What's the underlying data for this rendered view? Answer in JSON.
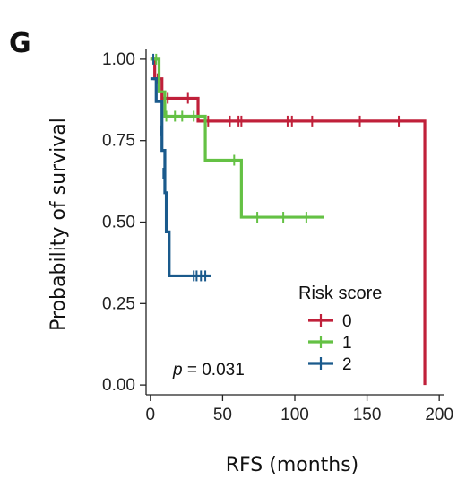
{
  "panel_label": "G",
  "chart_data": {
    "type": "line",
    "subtype": "kaplan-meier",
    "xlabel": "RFS (months)",
    "ylabel": "Probability of survival",
    "xlim": [
      -3,
      203
    ],
    "ylim": [
      -0.03,
      1.03
    ],
    "x_ticks": [
      0,
      50,
      100,
      150,
      200
    ],
    "y_ticks": [
      0.0,
      0.25,
      0.5,
      0.75,
      1.0
    ],
    "y_tick_labels": [
      "0.00",
      "0.25",
      "0.50",
      "0.75",
      "1.00"
    ],
    "grid": false,
    "legend": {
      "title": "Risk score",
      "placement": "bottom-right"
    },
    "annotation": {
      "prefix": "p",
      "text": " = 0.031"
    },
    "series": [
      {
        "name": "0",
        "color": "#c0203a",
        "steps": [
          [
            0,
            1.0
          ],
          [
            3,
            0.94
          ],
          [
            8,
            0.88
          ],
          [
            33,
            0.81
          ],
          [
            190,
            0.0
          ]
        ],
        "censor": [
          [
            5,
            0.94
          ],
          [
            12,
            0.88
          ],
          [
            26,
            0.88
          ],
          [
            40,
            0.81
          ],
          [
            55,
            0.81
          ],
          [
            61,
            0.81
          ],
          [
            63,
            0.81
          ],
          [
            95,
            0.81
          ],
          [
            98,
            0.81
          ],
          [
            112,
            0.81
          ],
          [
            145,
            0.81
          ],
          [
            172,
            0.81
          ]
        ]
      },
      {
        "name": "1",
        "color": "#64c144",
        "steps": [
          [
            0,
            1.0
          ],
          [
            6,
            0.9
          ],
          [
            10,
            0.825
          ],
          [
            38,
            0.69
          ],
          [
            63,
            0.515
          ],
          [
            120,
            0.515
          ]
        ],
        "censor": [
          [
            4,
            1.0
          ],
          [
            11,
            0.825
          ],
          [
            17,
            0.825
          ],
          [
            22,
            0.825
          ],
          [
            30,
            0.825
          ],
          [
            58,
            0.69
          ],
          [
            74,
            0.515
          ],
          [
            92,
            0.515
          ],
          [
            108,
            0.515
          ]
        ]
      },
      {
        "name": "2",
        "color": "#1a5a8c",
        "steps": [
          [
            0,
            0.94
          ],
          [
            4,
            0.87
          ],
          [
            8,
            0.72
          ],
          [
            10,
            0.59
          ],
          [
            11,
            0.47
          ],
          [
            13,
            0.335
          ],
          [
            42,
            0.335
          ]
        ],
        "censor": [
          [
            2,
            1.0
          ],
          [
            7,
            0.78
          ],
          [
            9,
            0.65
          ],
          [
            30,
            0.335
          ],
          [
            32,
            0.335
          ],
          [
            35,
            0.335
          ],
          [
            38,
            0.335
          ]
        ]
      }
    ]
  }
}
